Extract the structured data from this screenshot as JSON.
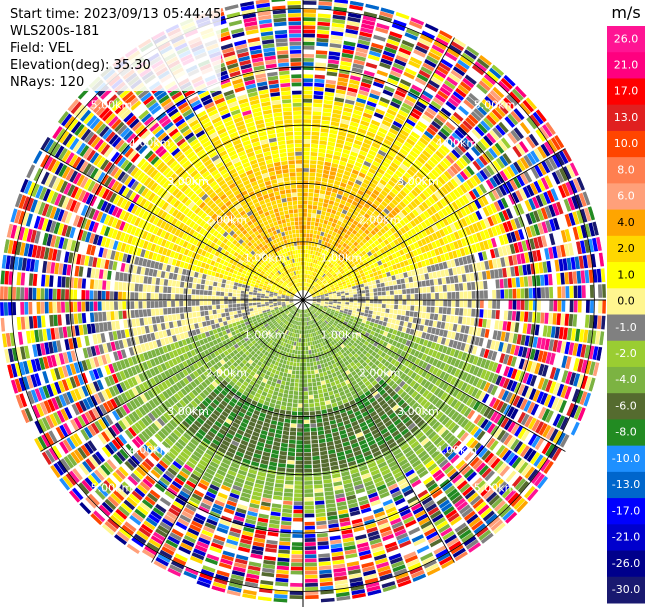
{
  "header": {
    "start_time": "Start time: 2023/09/13 05:44:45",
    "instrument": "WLS200s-181",
    "field": "Field: VEL",
    "elevation": "Elevation(deg): 35.30",
    "nrays": "NRays: 120"
  },
  "chart_data": {
    "type": "heatmap",
    "projection": "polar PPI",
    "title": "",
    "field": "VEL",
    "units": "m/s",
    "range_ring_labels": [
      "1.00km",
      "2.00km",
      "3.00km",
      "4.00km",
      "5.00km"
    ],
    "range_rings_km": [
      1,
      2,
      3,
      4,
      5
    ],
    "max_range_km": 5.2,
    "n_rays": 120,
    "spoke_count": 12,
    "colorbar": {
      "title": "m/s",
      "tick_labels": [
        "26.0",
        "21.0",
        "17.0",
        "13.0",
        "10.0",
        "8.0",
        "6.0",
        "4.0",
        "2.0",
        "1.0",
        "0.0",
        "-1.0",
        "-2.0",
        "-4.0",
        "-6.0",
        "-8.0",
        "-10.0",
        "-13.0",
        "-17.0",
        "-21.0",
        "-26.0",
        "-30.0"
      ],
      "colors": [
        "#ff1493",
        "#ff007f",
        "#ff0000",
        "#e02020",
        "#ff4500",
        "#ff7f50",
        "#ffa07a",
        "#ffa500",
        "#ffd700",
        "#ffff00",
        "#fff68f",
        "#808080",
        "#9acd32",
        "#7cb342",
        "#556b2f",
        "#228b22",
        "#1e90ff",
        "#0066cc",
        "#0000ff",
        "#0000cd",
        "#00008b",
        "#191970"
      ]
    },
    "regions": [
      {
        "description_value_ms": 3.0,
        "sector": "north",
        "range_km": [
          0.9,
          2.3
        ]
      },
      {
        "description_value_ms": 1.5,
        "sector": "north",
        "range_km": [
          0.2,
          3.4
        ]
      },
      {
        "description_value_ms": 0.0,
        "sector": "east-west band",
        "range_km": [
          0.3,
          3.6
        ]
      },
      {
        "description_value_ms": -2.0,
        "sector": "south",
        "range_km": [
          0.5,
          3.4
        ]
      },
      {
        "description_value_ms": -6.0,
        "sector": "south",
        "range_km": [
          1.9,
          2.9
        ]
      }
    ]
  }
}
